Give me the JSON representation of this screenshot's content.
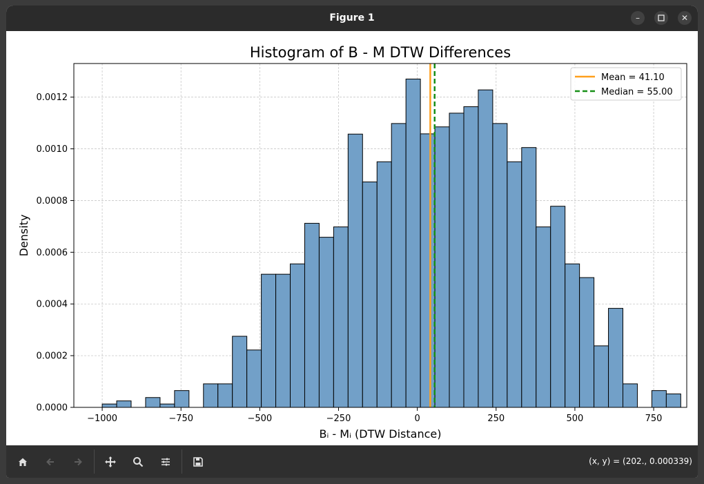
{
  "window": {
    "title": "Figure 1"
  },
  "toolbar": {
    "coords": "(x, y) = (202., 0.000339)",
    "buttons": [
      "home-icon",
      "back-icon",
      "forward-icon",
      "pan-icon",
      "zoom-icon",
      "configure-icon",
      "save-icon"
    ]
  },
  "colors": {
    "bar_fill": "#72a0c8",
    "bar_edge": "#000000",
    "mean": "#ff9f1c",
    "median": "#178f17",
    "titlebar": "#2b2b2b",
    "toolbar": "#2f2f2f"
  },
  "chart_data": {
    "type": "bar",
    "title": "Histogram of B - M DTW Differences",
    "xlabel": "Bᵢ - Mᵢ (DTW Distance)",
    "ylabel": "Density",
    "xlim": [
      -1090,
      855
    ],
    "ylim": [
      0,
      0.00133
    ],
    "grid": true,
    "legend_position": "top-right",
    "xticks": [
      -1000,
      -750,
      -500,
      -250,
      0,
      250,
      500,
      750
    ],
    "xtick_labels": [
      "−1000",
      "−750",
      "−500",
      "−250",
      "0",
      "250",
      "500",
      "750"
    ],
    "yticks": [
      0,
      0.0002,
      0.0004,
      0.0006,
      0.0008,
      0.001,
      0.0012
    ],
    "ytick_labels": [
      "0.0000",
      "0.0002",
      "0.0004",
      "0.0006",
      "0.0008",
      "0.0010",
      "0.0012"
    ],
    "bin_start": -1000,
    "bin_width": 45.9,
    "values": [
      1.3e-05,
      2.5e-05,
      0,
      3.8e-05,
      1.3e-05,
      6.5e-05,
      0,
      9.1e-05,
      9.1e-05,
      0.000275,
      0.000222,
      0.000515,
      0.000515,
      0.000555,
      0.000712,
      0.000658,
      0.000698,
      0.001057,
      0.000872,
      0.00095,
      0.001098,
      0.00127,
      0.001058,
      0.001085,
      0.001138,
      0.001163,
      0.001228,
      0.001098,
      0.00095,
      0.001005,
      0.000698,
      0.000778,
      0.000555,
      0.000502,
      0.000238,
      0.000383,
      9.1e-05,
      0,
      6.5e-05,
      5.2e-05
    ],
    "lines": [
      {
        "name": "Mean = 41.10",
        "x": 41.1,
        "style": "solid"
      },
      {
        "name": "Median = 55.00",
        "x": 55.0,
        "style": "dashed"
      }
    ]
  }
}
